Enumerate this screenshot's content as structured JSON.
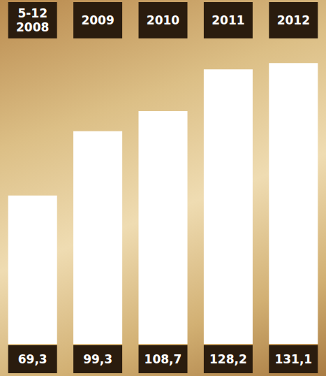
{
  "chart_data": {
    "type": "bar",
    "categories": [
      "5-12 2008",
      "2009",
      "2010",
      "2011",
      "2012"
    ],
    "values": [
      69.3,
      99.3,
      108.7,
      128.2,
      131.1
    ],
    "value_labels": [
      "69,3",
      "99,3",
      "108,7",
      "128,2",
      "131,1"
    ],
    "color": "#ffffff",
    "ylim": [
      0,
      140
    ],
    "grid": false,
    "data_labels": true,
    "tick_labels": "x"
  }
}
